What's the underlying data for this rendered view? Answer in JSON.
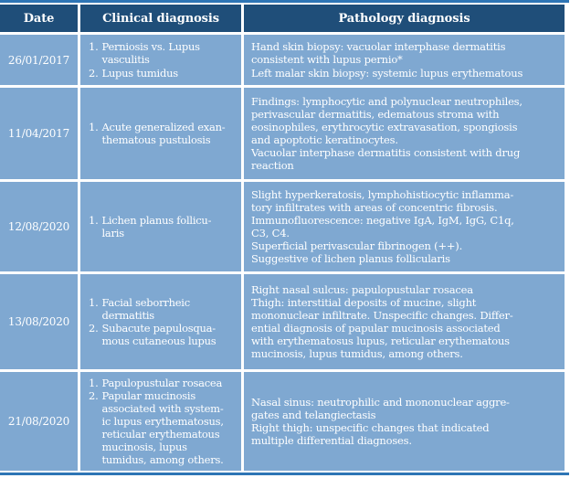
{
  "table": {
    "colors": {
      "header_bg": "#1F4E79",
      "cell_bg": "#7FA8D1",
      "border": "#2E75B5",
      "text": "#FFFFFF"
    },
    "headers": [
      "Date",
      "Clinical diagnosis",
      "Pathology diagnosis"
    ],
    "rows": [
      {
        "date": "26/01/2017",
        "clinical": [
          {
            "num": "1.",
            "lines": [
              "Perniosis vs. Lupus",
              "vasculitis"
            ]
          },
          {
            "num": "2.",
            "lines": [
              "Lupus tumidus"
            ]
          }
        ],
        "pathology": [
          "Hand skin biopsy: vacuolar interphase dermatitis",
          "consistent with lupus pernio*",
          "Left malar skin biopsy: systemic lupus erythematous"
        ]
      },
      {
        "date": "11/04/2017",
        "clinical": [
          {
            "num": "1.",
            "lines": [
              "Acute generalized exan-",
              "thematous pustulosis"
            ]
          }
        ],
        "pathology": [
          "Findings: lymphocytic and polynuclear neutrophiles,",
          "perivascular dermatitis, edematous stroma with",
          "eosinophiles, erythrocytic extravasation, spongiosis",
          "and apoptotic keratinocytes.",
          "Vacuolar interphase dermatitis consistent with drug",
          "reaction"
        ]
      },
      {
        "date": "12/08/2020",
        "clinical": [
          {
            "num": "1.",
            "lines": [
              "Lichen planus follicu-",
              "laris"
            ]
          }
        ],
        "pathology": [
          "Slight hyperkeratosis, lymphohistiocytic inflamma-",
          "tory infiltrates with areas of concentric fibrosis.",
          "Immunofluorescence: negative IgA, IgM, IgG, C1q,",
          "C3, C4.",
          "Superficial perivascular fibrinogen (++).",
          "Suggestive of lichen planus follicularis"
        ]
      },
      {
        "date": "13/08/2020",
        "clinical": [
          {
            "num": "1.",
            "lines": [
              "Facial seborrheic",
              "dermatitis"
            ]
          },
          {
            "num": "2.",
            "lines": [
              "Subacute papulosqua-",
              "mous cutaneous lupus"
            ]
          }
        ],
        "pathology": [
          "Right nasal sulcus: papulopustular rosacea",
          "Thigh: interstitial deposits of mucine, slight",
          "mononuclear infiltrate. Unspecific changes. Differ-",
          "ential diagnosis of papular mucinosis associated",
          "with erythematosus lupus, reticular erythematous",
          "mucinosis, lupus tumidus, among others."
        ]
      },
      {
        "date": "21/08/2020",
        "clinical": [
          {
            "num": "1.",
            "lines": [
              "Papulopustular rosacea"
            ]
          },
          {
            "num": "2.",
            "lines": [
              "Papular mucinosis",
              "associated with system-",
              "ic lupus erythematosus,",
              "reticular erythematous",
              "mucinosis, lupus",
              "tumidus, among others."
            ]
          }
        ],
        "pathology": [
          "Nasal sinus: neutrophilic and mononuclear aggre-",
          "gates and telangiectasis",
          "Right thigh: unspecific changes that indicated",
          "multiple differential diagnoses."
        ]
      }
    ]
  }
}
